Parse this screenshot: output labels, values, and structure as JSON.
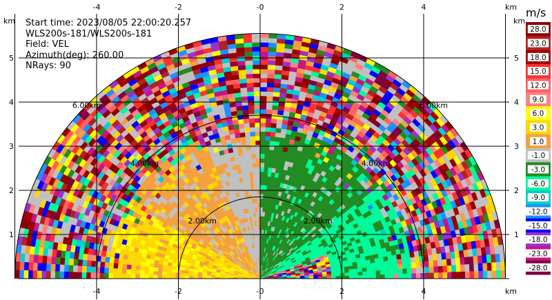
{
  "chart_data": {
    "type": "heatmap",
    "subtype": "ppi-radar-sector",
    "info_lines": [
      "Start time: 2023/08/05 22:00:20.257",
      "WLS200s-181/WLS200s-181",
      "Field: VEL",
      "Azimuth(deg): 260.00",
      "NRays: 90"
    ],
    "axis_unit_label": "km",
    "x_ticks": [
      -4,
      -2,
      0,
      2,
      4
    ],
    "y_ticks": [
      1,
      2,
      3,
      4,
      5
    ],
    "xlim": [
      -6,
      6
    ],
    "ylim": [
      0,
      6
    ],
    "grid": true,
    "range_rings": [
      {
        "radius_km": 2,
        "label": "2.00km"
      },
      {
        "radius_km": 4,
        "label": "4.00km"
      },
      {
        "radius_km": 6,
        "label": "6.00km"
      }
    ],
    "sector_deg": [
      -90,
      90
    ],
    "colorbar": {
      "unit": "m/s",
      "labels": [
        "28.0",
        "23.0",
        "18.0",
        "15.0",
        "12.0",
        "9.0",
        "6.0",
        "3.0",
        "1.0",
        "-1.0",
        "-3.0",
        "-6.0",
        "-9.0",
        "-12.0",
        "-15.0",
        "-18.0",
        "-23.0",
        "-28.0"
      ],
      "colors": [
        "#8b0000",
        "#b22222",
        "#a00000",
        "#ff3030",
        "#ff6060",
        "#ff8080",
        "#ffff00",
        "#ffd700",
        "#f4a040",
        "#c0c0c0",
        "#228b22",
        "#00fa9a",
        "#00ced1",
        "#1e90ff",
        "#0000ff",
        "#9932cc",
        "#c71585",
        "#800040"
      ]
    },
    "field_summary": {
      "near_range_west_band": "1.0 to 9.0 m/s (orange/yellow)",
      "near_range_north_band": "-1.0 to 1.0 m/s (gray)",
      "near_range_east_band": "-6.0 to -1.0 m/s (green)",
      "far_range": "noise, all colors"
    }
  }
}
